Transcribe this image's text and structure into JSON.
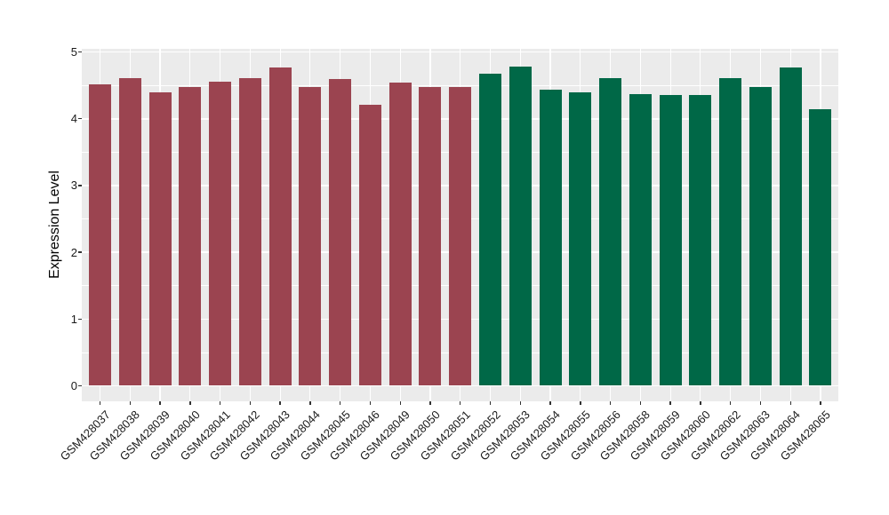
{
  "figure": {
    "kind": "bar-chart",
    "background": "#ffffff"
  },
  "colors": {
    "group1_bar": "#9B4450",
    "group2_bar": "#006847",
    "panel_background": "#EBEBEB",
    "gridline": "#FFFFFF",
    "axis_text": "#1a1a1a",
    "tick_mark": "#333333"
  },
  "chart_data": {
    "type": "bar",
    "title": "",
    "xlabel": "",
    "ylabel": "Expression Level",
    "ylim": [
      0,
      5
    ],
    "yticks": [
      0,
      1,
      2,
      3,
      4,
      5
    ],
    "ytick_labels": [
      "0",
      "1",
      "2",
      "3",
      "4",
      "5"
    ],
    "minor_grid_step": 0.5,
    "grid": "on",
    "legend_position": "none",
    "x_label_rotation_deg": 45,
    "categories": [
      "GSM428037",
      "GSM428038",
      "GSM428039",
      "GSM428040",
      "GSM428041",
      "GSM428042",
      "GSM428043",
      "GSM428044",
      "GSM428045",
      "GSM428046",
      "GSM428049",
      "GSM428050",
      "GSM428051",
      "GSM428052",
      "GSM428053",
      "GSM428054",
      "GSM428055",
      "GSM428056",
      "GSM428058",
      "GSM428059",
      "GSM428060",
      "GSM428062",
      "GSM428063",
      "GSM428064",
      "GSM428065"
    ],
    "values": [
      4.52,
      4.61,
      4.4,
      4.48,
      4.55,
      4.61,
      4.77,
      4.47,
      4.59,
      4.21,
      4.54,
      4.48,
      4.47,
      4.67,
      4.78,
      4.43,
      4.39,
      4.61,
      4.37,
      4.36,
      4.36,
      4.61,
      4.48,
      4.77,
      4.15
    ],
    "groups": [
      "group1",
      "group1",
      "group1",
      "group1",
      "group1",
      "group1",
      "group1",
      "group1",
      "group1",
      "group1",
      "group1",
      "group1",
      "group1",
      "group2",
      "group2",
      "group2",
      "group2",
      "group2",
      "group2",
      "group2",
      "group2",
      "group2",
      "group2",
      "group2",
      "group2"
    ],
    "group_colors": {
      "group1": "#9B4450",
      "group2": "#006847"
    }
  }
}
